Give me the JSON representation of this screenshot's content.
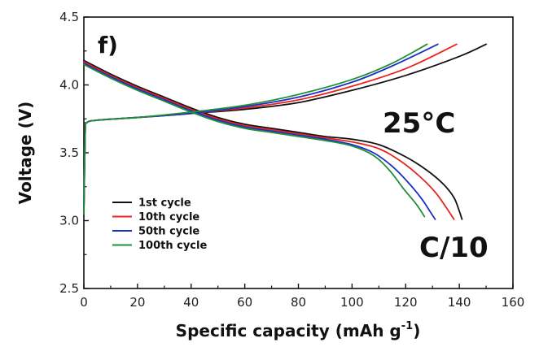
{
  "chart_data": {
    "type": "line",
    "panel_label": "f)",
    "annotations": [
      "25°C",
      "C/10"
    ],
    "xlabel": "Specific capacity (mAh g",
    "xlabel_sup": "-1",
    "xlabel_tail": ")",
    "ylabel": "Voltage (V)",
    "xlim": [
      0,
      160
    ],
    "ylim": [
      2.5,
      4.5
    ],
    "x_ticks": [
      "0",
      "20",
      "40",
      "60",
      "80",
      "100",
      "120",
      "140",
      "160"
    ],
    "y_ticks": [
      "2.5",
      "3.0",
      "3.5",
      "4.0",
      "4.5"
    ],
    "legend_position": "bottom-left",
    "series": [
      {
        "name": "1st cycle",
        "color": "#111111",
        "charge": [
          [
            0,
            3.05
          ],
          [
            0.5,
            3.65
          ],
          [
            1,
            3.72
          ],
          [
            5,
            3.74
          ],
          [
            20,
            3.76
          ],
          [
            40,
            3.79
          ],
          [
            60,
            3.82
          ],
          [
            80,
            3.87
          ],
          [
            100,
            3.96
          ],
          [
            120,
            4.07
          ],
          [
            140,
            4.21
          ],
          [
            150,
            4.3
          ]
        ],
        "discharge": [
          [
            0,
            4.18
          ],
          [
            10,
            4.08
          ],
          [
            20,
            3.99
          ],
          [
            30,
            3.91
          ],
          [
            40,
            3.83
          ],
          [
            50,
            3.76
          ],
          [
            60,
            3.71
          ],
          [
            70,
            3.68
          ],
          [
            80,
            3.65
          ],
          [
            90,
            3.62
          ],
          [
            100,
            3.6
          ],
          [
            110,
            3.56
          ],
          [
            120,
            3.47
          ],
          [
            128,
            3.37
          ],
          [
            134,
            3.27
          ],
          [
            138,
            3.17
          ],
          [
            140,
            3.07
          ],
          [
            141,
            3.01
          ]
        ]
      },
      {
        "name": "10th cycle",
        "color": "#e8231c",
        "charge": [
          [
            0,
            3.05
          ],
          [
            0.5,
            3.65
          ],
          [
            1,
            3.72
          ],
          [
            5,
            3.74
          ],
          [
            20,
            3.76
          ],
          [
            40,
            3.79
          ],
          [
            60,
            3.83
          ],
          [
            80,
            3.89
          ],
          [
            100,
            3.99
          ],
          [
            120,
            4.12
          ],
          [
            139,
            4.3
          ]
        ],
        "discharge": [
          [
            0,
            4.17
          ],
          [
            10,
            4.07
          ],
          [
            20,
            3.98
          ],
          [
            30,
            3.9
          ],
          [
            40,
            3.82
          ],
          [
            50,
            3.75
          ],
          [
            60,
            3.7
          ],
          [
            70,
            3.67
          ],
          [
            80,
            3.64
          ],
          [
            90,
            3.61
          ],
          [
            100,
            3.58
          ],
          [
            110,
            3.53
          ],
          [
            118,
            3.44
          ],
          [
            125,
            3.33
          ],
          [
            131,
            3.21
          ],
          [
            135,
            3.1
          ],
          [
            138,
            3.01
          ]
        ]
      },
      {
        "name": "50th cycle",
        "color": "#1c2fc2",
        "charge": [
          [
            0,
            3.05
          ],
          [
            0.5,
            3.65
          ],
          [
            1,
            3.72
          ],
          [
            5,
            3.74
          ],
          [
            20,
            3.76
          ],
          [
            40,
            3.79
          ],
          [
            60,
            3.84
          ],
          [
            80,
            3.91
          ],
          [
            100,
            4.02
          ],
          [
            115,
            4.14
          ],
          [
            132,
            4.3
          ]
        ],
        "discharge": [
          [
            0,
            4.16
          ],
          [
            10,
            4.06
          ],
          [
            20,
            3.97
          ],
          [
            30,
            3.89
          ],
          [
            40,
            3.81
          ],
          [
            50,
            3.74
          ],
          [
            60,
            3.69
          ],
          [
            70,
            3.66
          ],
          [
            80,
            3.63
          ],
          [
            90,
            3.6
          ],
          [
            100,
            3.56
          ],
          [
            108,
            3.5
          ],
          [
            115,
            3.4
          ],
          [
            121,
            3.28
          ],
          [
            126,
            3.16
          ],
          [
            129,
            3.07
          ],
          [
            131,
            3.01
          ]
        ]
      },
      {
        "name": "100th cycle",
        "color": "#1f8f3a",
        "charge": [
          [
            0,
            3.05
          ],
          [
            0.5,
            3.65
          ],
          [
            1,
            3.72
          ],
          [
            5,
            3.74
          ],
          [
            20,
            3.76
          ],
          [
            40,
            3.8
          ],
          [
            60,
            3.85
          ],
          [
            80,
            3.93
          ],
          [
            100,
            4.04
          ],
          [
            115,
            4.16
          ],
          [
            128,
            4.3
          ]
        ],
        "discharge": [
          [
            0,
            4.15
          ],
          [
            10,
            4.05
          ],
          [
            20,
            3.96
          ],
          [
            30,
            3.88
          ],
          [
            40,
            3.8
          ],
          [
            50,
            3.73
          ],
          [
            60,
            3.68
          ],
          [
            70,
            3.65
          ],
          [
            80,
            3.62
          ],
          [
            90,
            3.59
          ],
          [
            100,
            3.55
          ],
          [
            108,
            3.48
          ],
          [
            114,
            3.37
          ],
          [
            119,
            3.24
          ],
          [
            124,
            3.12
          ],
          [
            127,
            3.03
          ]
        ]
      }
    ]
  }
}
